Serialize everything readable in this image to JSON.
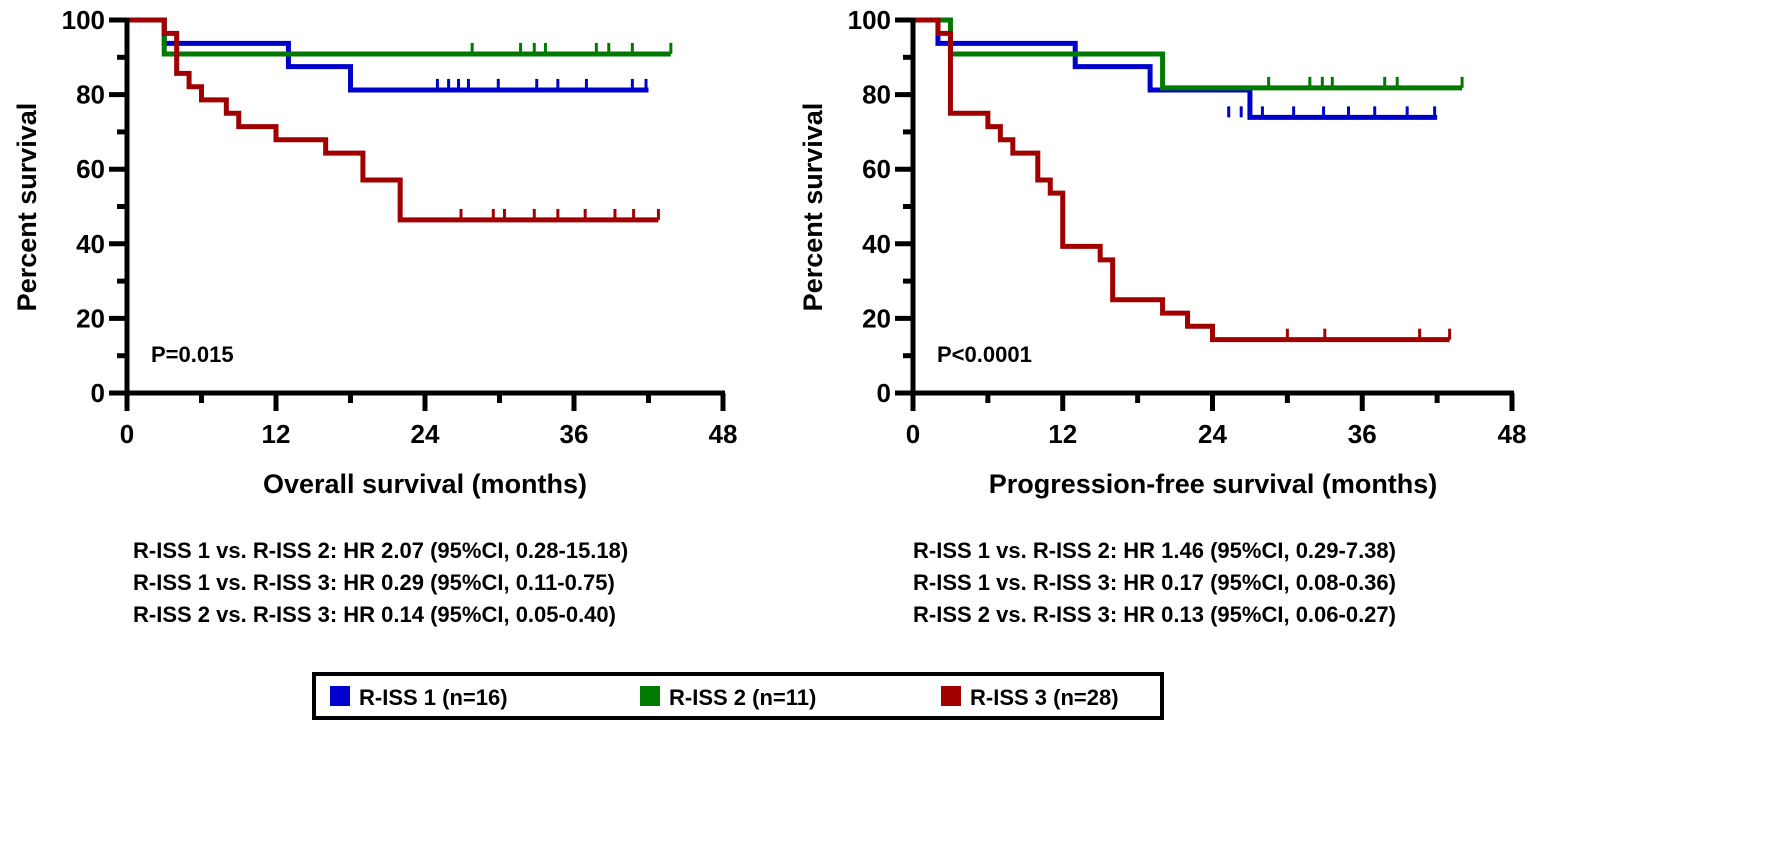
{
  "colors": {
    "r_iss_1": "#0000cc",
    "r_iss_2": "#007a00",
    "r_iss_3": "#a00000"
  },
  "legend": [
    {
      "label": "R-ISS 1 (n=16)",
      "color": "#0000cc"
    },
    {
      "label": "R-ISS 2 (n=11)",
      "color": "#007a00"
    },
    {
      "label": "R-ISS 3 (n=28)",
      "color": "#a00000"
    }
  ],
  "chart_data": [
    {
      "type": "line",
      "subtype": "kaplan-meier",
      "xlabel": "Overall survival (months)",
      "ylabel": "Percent survival",
      "xlim": [
        0,
        48
      ],
      "ylim": [
        0,
        100
      ],
      "xticks": [
        "0",
        "12",
        "24",
        "36",
        "48"
      ],
      "yticks": [
        "0",
        "20",
        "40",
        "60",
        "80",
        "100"
      ],
      "annotation": "P=0.015",
      "hr_lines": [
        "R-ISS 1 vs.  R-ISS 2: HR 2.07 (95%CI, 0.28-15.18)",
        "R-ISS 1 vs.  R-ISS 3: HR 0.29 (95%CI, 0.11-0.75)",
        "R-ISS 2 vs.  R-ISS 3: HR 0.14 (95%CI, 0.05-0.40)"
      ],
      "series": [
        {
          "name": "R-ISS 1",
          "steps": [
            [
              0,
              100
            ],
            [
              3,
              93.75
            ],
            [
              13,
              87.5
            ],
            [
              18,
              81.25
            ]
          ],
          "end": 42,
          "censored": [
            25,
            25.9,
            26.7,
            27.5,
            29.9,
            33,
            34.7,
            37,
            40.7,
            41.8
          ]
        },
        {
          "name": "R-ISS 2",
          "steps": [
            [
              0,
              100
            ],
            [
              3,
              90.9
            ]
          ],
          "end": 43.8,
          "censored": [
            27.8,
            31.7,
            32.8,
            33.7,
            37.8,
            38.8,
            40.7,
            43.8
          ]
        },
        {
          "name": "R-ISS 3",
          "steps": [
            [
              0,
              100
            ],
            [
              3,
              96.4
            ],
            [
              4,
              85.7
            ],
            [
              5,
              82.1
            ],
            [
              6,
              78.6
            ],
            [
              8,
              75
            ],
            [
              9,
              71.4
            ],
            [
              12,
              67.9
            ],
            [
              16,
              64.3
            ],
            [
              19,
              57.1
            ],
            [
              22,
              46.4
            ]
          ],
          "end": 42.8,
          "censored": [
            26.9,
            29.5,
            30.4,
            32.8,
            34.7,
            36.9,
            39.3,
            40.8,
            42.8
          ]
        }
      ]
    },
    {
      "type": "line",
      "subtype": "kaplan-meier",
      "xlabel": "Progression-free survival (months)",
      "ylabel": "Percent survival",
      "xlim": [
        0,
        48
      ],
      "ylim": [
        0,
        100
      ],
      "xticks": [
        "0",
        "12",
        "24",
        "36",
        "48"
      ],
      "yticks": [
        "0",
        "20",
        "40",
        "60",
        "80",
        "100"
      ],
      "annotation": "P<0.0001",
      "hr_lines": [
        "R-ISS 1 vs.  R-ISS 2: HR 1.46 (95%CI, 0.29-7.38)",
        "R-ISS 1 vs.  R-ISS 3: HR 0.17 (95%CI, 0.08-0.36)",
        "R-ISS 2 vs.  R-ISS 3: HR 0.13 (95%CI, 0.06-0.27)"
      ],
      "series": [
        {
          "name": "R-ISS 1",
          "steps": [
            [
              0,
              100
            ],
            [
              2,
              93.75
            ],
            [
              13,
              87.5
            ],
            [
              19,
              81.25
            ],
            [
              27,
              73.9
            ]
          ],
          "end": 42,
          "censored": [
            25.3,
            26.3,
            28,
            30.5,
            32.9,
            34.9,
            37,
            39.6,
            41.8
          ]
        },
        {
          "name": "R-ISS 2",
          "steps": [
            [
              0,
              100
            ],
            [
              3,
              90.9
            ],
            [
              20,
              81.8
            ]
          ],
          "end": 44,
          "censored": [
            28.5,
            31.8,
            32.8,
            33.6,
            37.8,
            38.8,
            44
          ]
        },
        {
          "name": "R-ISS 3",
          "steps": [
            [
              0,
              100
            ],
            [
              2,
              96.4
            ],
            [
              3,
              75
            ],
            [
              6,
              71.4
            ],
            [
              7,
              67.9
            ],
            [
              8,
              64.3
            ],
            [
              10,
              57.1
            ],
            [
              11,
              53.6
            ],
            [
              12,
              39.3
            ],
            [
              15,
              35.7
            ],
            [
              16,
              25
            ],
            [
              20,
              21.4
            ],
            [
              22,
              17.9
            ],
            [
              24,
              14.3
            ]
          ],
          "end": 43,
          "censored": [
            30,
            33,
            40.6,
            43
          ]
        }
      ]
    }
  ]
}
